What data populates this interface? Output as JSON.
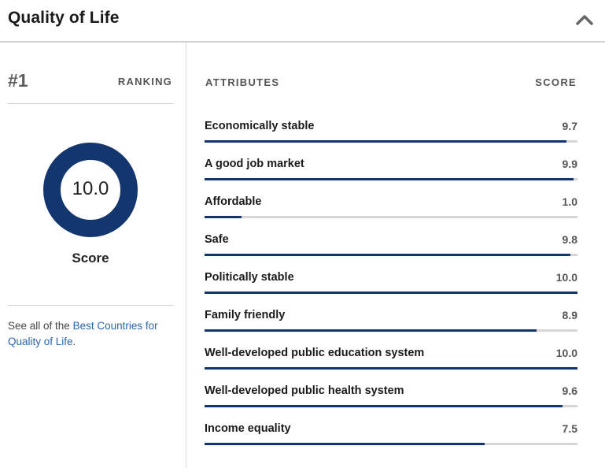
{
  "header": {
    "title": "Quality of Life",
    "collapse_icon": "chevron-up-icon"
  },
  "ranking": {
    "value": "#1",
    "label": "RANKING"
  },
  "score": {
    "value": "10.0",
    "label": "Score",
    "fraction": 1.0,
    "ring_color": "#13366e"
  },
  "see_all": {
    "prefix": "See all of the ",
    "link": "Best Countries for Quality of Life",
    "suffix": "."
  },
  "attributes": {
    "header": "ATTRIBUTES",
    "score_header": "SCORE",
    "bar_color": "#13366e",
    "track_color": "#d6d6d6",
    "max": 10,
    "items": [
      {
        "name": "Economically stable",
        "score": "9.7"
      },
      {
        "name": "A good job market",
        "score": "9.9"
      },
      {
        "name": "Affordable",
        "score": "1.0"
      },
      {
        "name": "Safe",
        "score": "9.8"
      },
      {
        "name": "Politically stable",
        "score": "10.0"
      },
      {
        "name": "Family friendly",
        "score": "8.9"
      },
      {
        "name": "Well-developed public education system",
        "score": "10.0"
      },
      {
        "name": "Well-developed public health system",
        "score": "9.6"
      },
      {
        "name": "Income equality",
        "score": "7.5"
      }
    ]
  }
}
